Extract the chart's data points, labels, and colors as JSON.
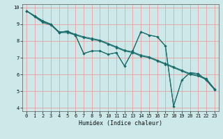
{
  "xlabel": "Humidex (Indice chaleur)",
  "xlim": [
    -0.5,
    23.5
  ],
  "ylim": [
    3.8,
    10.2
  ],
  "background_color": "#cce8e8",
  "grid_color": "#e8a8a8",
  "line_color": "#1a6b6b",
  "xticks": [
    0,
    1,
    2,
    3,
    4,
    5,
    6,
    7,
    8,
    9,
    10,
    11,
    12,
    13,
    14,
    15,
    16,
    17,
    18,
    19,
    20,
    21,
    22,
    23
  ],
  "yticks": [
    4,
    5,
    6,
    7,
    8,
    9,
    10
  ],
  "line1_x": [
    0,
    1,
    2,
    3,
    4,
    5,
    6,
    7,
    8,
    9,
    10,
    11,
    12,
    13,
    14,
    15,
    16,
    17,
    18,
    19,
    20,
    21,
    22,
    23
  ],
  "line1_y": [
    9.8,
    9.5,
    9.15,
    9.0,
    8.55,
    8.55,
    8.4,
    8.25,
    8.15,
    8.05,
    7.85,
    7.65,
    7.45,
    7.35,
    7.15,
    7.05,
    6.85,
    6.65,
    6.45,
    6.25,
    6.05,
    5.95,
    5.75,
    5.15
  ],
  "line2_x": [
    0,
    1,
    2,
    3,
    4,
    5,
    6,
    7,
    8,
    9,
    10,
    11,
    12,
    13,
    14,
    15,
    16,
    17,
    18,
    19,
    20,
    21,
    22,
    23
  ],
  "line2_y": [
    9.8,
    9.45,
    9.1,
    8.95,
    8.5,
    8.5,
    8.35,
    8.2,
    8.1,
    8.0,
    7.8,
    7.6,
    7.4,
    7.3,
    7.1,
    7.0,
    6.8,
    6.6,
    6.4,
    6.2,
    6.0,
    5.9,
    5.7,
    5.1
  ],
  "line3_x": [
    0,
    1,
    2,
    3,
    4,
    5,
    6,
    7,
    8,
    9,
    10,
    11,
    12,
    13,
    14,
    15,
    16,
    17,
    18,
    19,
    20,
    21,
    22,
    23
  ],
  "line3_y": [
    9.8,
    9.5,
    9.2,
    9.0,
    8.5,
    8.6,
    8.35,
    7.25,
    7.4,
    7.4,
    7.2,
    7.3,
    6.5,
    7.4,
    8.55,
    8.35,
    8.25,
    7.7,
    4.1,
    5.65,
    6.1,
    6.05,
    5.65,
    5.1
  ],
  "line4_x": [
    0,
    1,
    2,
    3,
    4,
    5,
    6,
    7,
    8,
    9,
    10,
    11,
    12,
    13,
    14,
    15,
    16,
    17,
    18,
    19,
    20,
    21,
    22,
    23
  ],
  "line4_y": [
    9.8,
    9.5,
    9.2,
    9.0,
    8.5,
    8.6,
    8.35,
    7.25,
    7.4,
    7.4,
    7.2,
    7.3,
    6.5,
    7.4,
    8.55,
    8.35,
    8.25,
    7.7,
    4.1,
    5.65,
    6.1,
    6.05,
    5.65,
    5.1
  ]
}
